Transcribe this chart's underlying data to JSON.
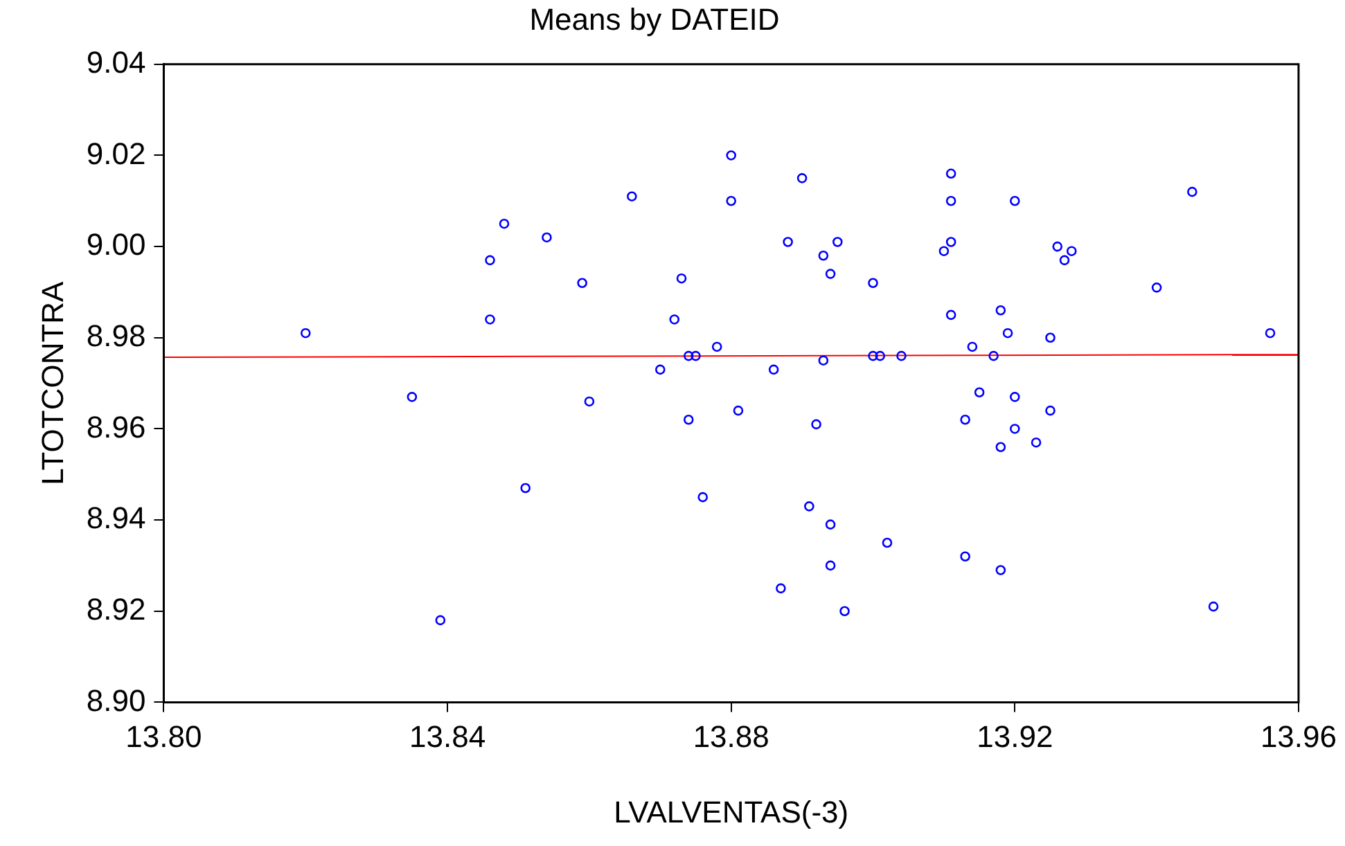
{
  "chart_data": {
    "type": "scatter",
    "title": "Means by DATEID",
    "xlabel": "LVALVENTAS(-3)",
    "ylabel": "LTOTCONTRA",
    "xlim": [
      13.8,
      13.96
    ],
    "xticks": [
      {
        "value": 13.8,
        "label": "13.80"
      },
      13.84,
      13.88,
      13.92,
      13.96
    ],
    "ylim": [
      8.9,
      9.04
    ],
    "yticks": [
      {
        "value": 8.9,
        "label": "8.90"
      },
      8.92,
      8.94,
      8.96,
      8.98,
      {
        "value": 9.0,
        "label": "9.00"
      },
      9.02,
      9.04
    ],
    "grid": false,
    "legend": false,
    "series": [
      {
        "type": "scatter",
        "color": "#0000ff",
        "marker": "circle",
        "x": [
          13.82,
          13.835,
          13.839,
          13.846,
          13.846,
          13.848,
          13.851,
          13.854,
          13.859,
          13.86,
          13.866,
          13.87,
          13.872,
          13.873,
          13.874,
          13.874,
          13.875,
          13.876,
          13.878,
          13.88,
          13.88,
          13.881,
          13.886,
          13.887,
          13.888,
          13.89,
          13.891,
          13.892,
          13.893,
          13.893,
          13.894,
          13.894,
          13.894,
          13.895,
          13.896,
          13.9,
          13.9,
          13.901,
          13.902,
          13.904,
          13.91,
          13.911,
          13.911,
          13.911,
          13.911,
          13.913,
          13.913,
          13.914,
          13.915,
          13.917,
          13.918,
          13.918,
          13.918,
          13.919,
          13.92,
          13.92,
          13.92,
          13.923,
          13.925,
          13.925,
          13.926,
          13.927,
          13.928,
          13.94,
          13.945,
          13.948,
          13.956
        ],
        "values": [
          8.981,
          8.967,
          8.918,
          8.997,
          8.984,
          9.005,
          8.947,
          9.002,
          8.992,
          8.966,
          9.011,
          8.973,
          8.984,
          8.993,
          8.962,
          8.976,
          8.976,
          8.945,
          8.978,
          9.02,
          9.01,
          8.964,
          8.973,
          8.925,
          9.001,
          9.015,
          8.943,
          8.961,
          8.998,
          8.975,
          8.994,
          8.939,
          8.93,
          9.001,
          8.92,
          8.992,
          8.976,
          8.976,
          8.935,
          8.976,
          8.999,
          9.016,
          9.01,
          8.985,
          9.001,
          8.932,
          8.962,
          8.978,
          8.968,
          8.976,
          8.986,
          8.956,
          8.929,
          8.981,
          8.96,
          9.01,
          8.967,
          8.957,
          8.964,
          8.98,
          9.0,
          8.997,
          8.999,
          8.991,
          9.012,
          8.921,
          8.981
        ]
      },
      {
        "type": "line",
        "color": "#ff0000",
        "marker": "none",
        "line_style": "solid",
        "x": [
          13.8,
          13.96
        ],
        "values": [
          8.9757,
          8.9763
        ]
      }
    ]
  }
}
